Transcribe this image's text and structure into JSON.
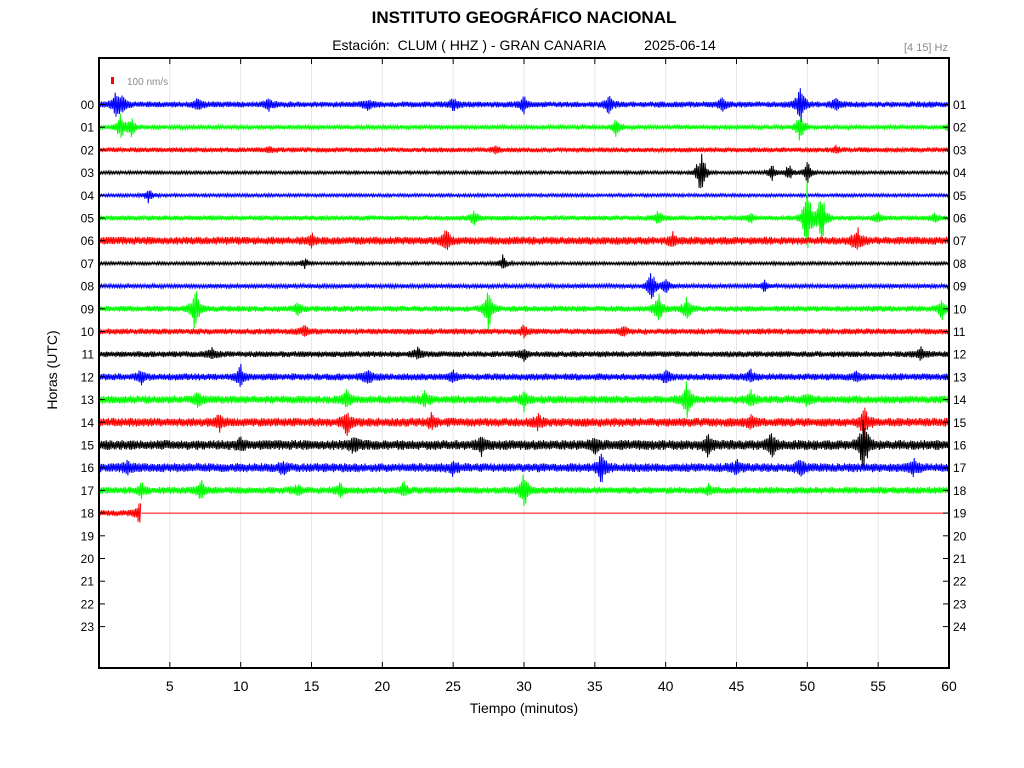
{
  "header": {
    "title": "INSTITUTO GEOGRÁFICO NACIONAL",
    "station_label": "Estación:",
    "station_name": "CLUM ( HHZ ) - GRAN CANARIA",
    "date": "2025-06-14",
    "frequency_band": "[4 15] Hz"
  },
  "chart_data": {
    "type": "line",
    "title": "INSTITUTO GEOGRÁFICO NACIONAL",
    "subtitle": "Estación:  CLUM ( HHZ ) - GRAN CANARIA        2025-06-14",
    "xlabel": "Tiempo (minutos)",
    "ylabel": "Horas (UTC)",
    "xlim": [
      0,
      60
    ],
    "x_ticks": [
      5,
      10,
      15,
      20,
      25,
      30,
      35,
      40,
      45,
      50,
      55,
      60
    ],
    "left_ticks": [
      "00",
      "01",
      "02",
      "03",
      "04",
      "05",
      "06",
      "07",
      "08",
      "09",
      "10",
      "11",
      "12",
      "13",
      "14",
      "15",
      "16",
      "17",
      "18",
      "19",
      "20",
      "21",
      "22",
      "23"
    ],
    "right_ticks": [
      "01",
      "02",
      "03",
      "04",
      "05",
      "06",
      "07",
      "08",
      "09",
      "10",
      "11",
      "12",
      "13",
      "14",
      "15",
      "16",
      "17",
      "18",
      "19",
      "20",
      "21",
      "22",
      "23",
      "24"
    ],
    "scale_bar_label": "100 nm/s",
    "grid": "vertical",
    "colors_cycle": [
      "#0000ff",
      "#00ff00",
      "#ff0000",
      "#000000"
    ],
    "series": [
      {
        "hour": "00",
        "color": "#0000ff",
        "end_minute": 60,
        "noise": 3,
        "events": [
          [
            1.2,
            12
          ],
          [
            1.6,
            10
          ],
          [
            7,
            7
          ],
          [
            12,
            6
          ],
          [
            19,
            6
          ],
          [
            25,
            6
          ],
          [
            30,
            8
          ],
          [
            36,
            10
          ],
          [
            44,
            7
          ],
          [
            49.5,
            22
          ],
          [
            52,
            7
          ]
        ]
      },
      {
        "hour": "01",
        "color": "#00ff00",
        "end_minute": 60,
        "noise": 2,
        "events": [
          [
            1.5,
            14
          ],
          [
            2.3,
            10
          ],
          [
            36.5,
            12
          ],
          [
            49.5,
            18
          ],
          [
            60,
            4
          ]
        ]
      },
      {
        "hour": "02",
        "color": "#ff0000",
        "end_minute": 60,
        "noise": 2.5,
        "events": [
          [
            12,
            3
          ],
          [
            28,
            3
          ],
          [
            52,
            3
          ]
        ]
      },
      {
        "hour": "03",
        "color": "#000000",
        "end_minute": 60,
        "noise": 1.5,
        "events": [
          [
            42.5,
            30
          ],
          [
            47.5,
            9
          ],
          [
            48.7,
            9
          ],
          [
            50,
            12
          ]
        ]
      },
      {
        "hour": "04",
        "color": "#0000ff",
        "end_minute": 60,
        "noise": 1.5,
        "events": [
          [
            3.5,
            8
          ]
        ]
      },
      {
        "hour": "05",
        "color": "#00ff00",
        "end_minute": 60,
        "noise": 2.5,
        "events": [
          [
            26.5,
            7
          ],
          [
            39.5,
            7
          ],
          [
            46,
            6
          ],
          [
            50,
            45
          ],
          [
            51,
            30
          ],
          [
            55,
            6
          ],
          [
            59,
            5
          ]
        ]
      },
      {
        "hour": "06",
        "color": "#ff0000",
        "end_minute": 60,
        "noise": 4,
        "events": [
          [
            15,
            6
          ],
          [
            24.5,
            12
          ],
          [
            40.5,
            6
          ],
          [
            53.5,
            14
          ]
        ]
      },
      {
        "hour": "07",
        "color": "#000000",
        "end_minute": 60,
        "noise": 1.5,
        "events": [
          [
            14.5,
            6
          ],
          [
            28.5,
            8
          ]
        ]
      },
      {
        "hour": "08",
        "color": "#0000ff",
        "end_minute": 60,
        "noise": 2,
        "events": [
          [
            39,
            18
          ],
          [
            40,
            8
          ],
          [
            47,
            6
          ]
        ]
      },
      {
        "hour": "09",
        "color": "#00ff00",
        "end_minute": 60,
        "noise": 3,
        "events": [
          [
            6.8,
            24
          ],
          [
            14,
            6
          ],
          [
            27.5,
            22
          ],
          [
            39.5,
            16
          ],
          [
            41.5,
            12
          ],
          [
            59.5,
            12
          ]
        ]
      },
      {
        "hour": "10",
        "color": "#ff0000",
        "end_minute": 60,
        "noise": 3,
        "events": [
          [
            14.5,
            6
          ],
          [
            30,
            6
          ],
          [
            37,
            5
          ]
        ]
      },
      {
        "hour": "11",
        "color": "#000000",
        "end_minute": 60,
        "noise": 3,
        "events": [
          [
            8,
            6
          ],
          [
            22.5,
            6
          ],
          [
            30,
            6
          ],
          [
            58,
            6
          ]
        ]
      },
      {
        "hour": "12",
        "color": "#0000ff",
        "end_minute": 60,
        "noise": 3.5,
        "events": [
          [
            3,
            7
          ],
          [
            10,
            12
          ],
          [
            19,
            8
          ],
          [
            25,
            6
          ],
          [
            40,
            6
          ],
          [
            46,
            6
          ],
          [
            53.5,
            6
          ]
        ]
      },
      {
        "hour": "13",
        "color": "#00ff00",
        "end_minute": 60,
        "noise": 4,
        "events": [
          [
            7,
            7
          ],
          [
            17.5,
            12
          ],
          [
            23,
            8
          ],
          [
            30,
            10
          ],
          [
            41.5,
            18
          ],
          [
            46,
            8
          ],
          [
            50,
            6
          ]
        ]
      },
      {
        "hour": "14",
        "color": "#ff0000",
        "end_minute": 60,
        "noise": 4.5,
        "events": [
          [
            8.5,
            8
          ],
          [
            17.5,
            14
          ],
          [
            23.5,
            8
          ],
          [
            31,
            6
          ],
          [
            46,
            6
          ],
          [
            54,
            18
          ]
        ]
      },
      {
        "hour": "15",
        "color": "#000000",
        "end_minute": 60,
        "noise": 5,
        "events": [
          [
            10,
            6
          ],
          [
            18,
            8
          ],
          [
            27,
            8
          ],
          [
            35,
            8
          ],
          [
            43,
            10
          ],
          [
            47.5,
            12
          ],
          [
            54,
            32
          ]
        ]
      },
      {
        "hour": "16",
        "color": "#0000ff",
        "end_minute": 60,
        "noise": 4.5,
        "events": [
          [
            2,
            7
          ],
          [
            13,
            6
          ],
          [
            25,
            6
          ],
          [
            35.5,
            16
          ],
          [
            45,
            7
          ],
          [
            49.5,
            9
          ],
          [
            57.5,
            8
          ]
        ]
      },
      {
        "hour": "17",
        "color": "#00ff00",
        "end_minute": 60,
        "noise": 3.5,
        "events": [
          [
            3,
            8
          ],
          [
            7.2,
            10
          ],
          [
            14,
            6
          ],
          [
            17,
            6
          ],
          [
            21.5,
            8
          ],
          [
            30,
            20
          ],
          [
            43,
            5
          ]
        ]
      },
      {
        "hour": "18",
        "color": "#ff0000",
        "end_minute": 3,
        "noise": 3,
        "events": [
          [
            2.9,
            12
          ]
        ],
        "flat_until_minute": 60
      }
    ]
  }
}
